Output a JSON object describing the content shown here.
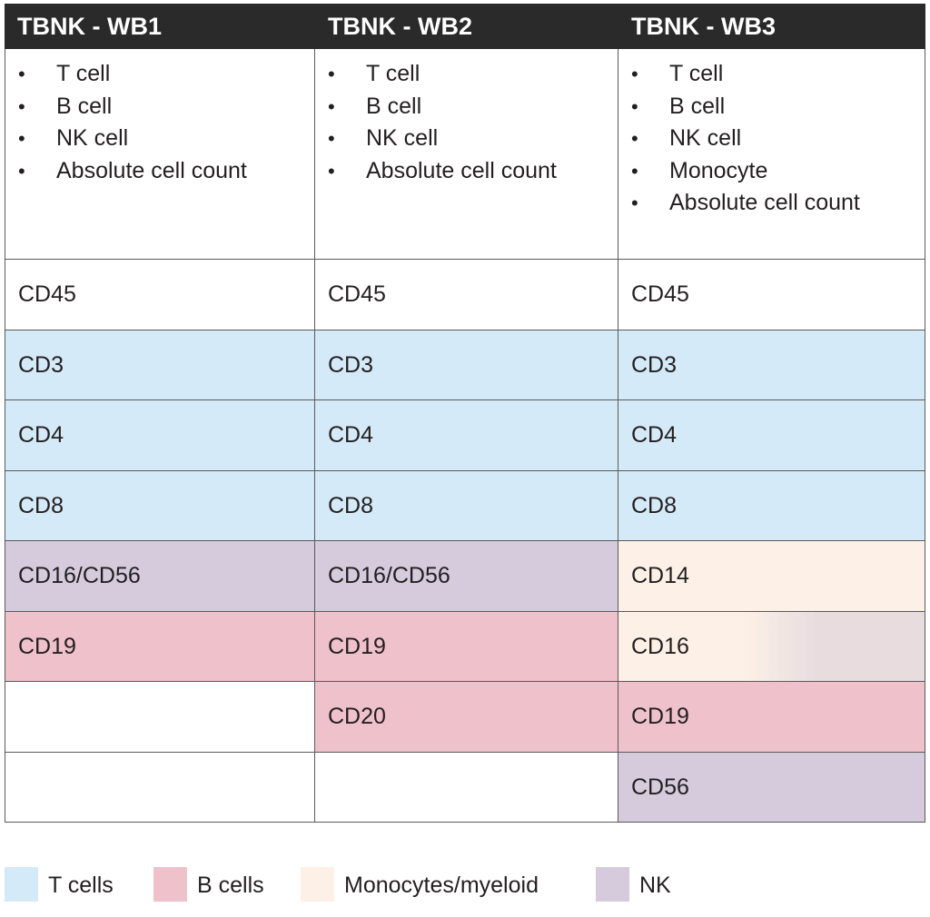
{
  "colors": {
    "header_bg": "#2a2a2a",
    "t_cells": "#d5eaf8",
    "b_cells": "#efc1ca",
    "monocytes_myeloid": "#fdf1e7",
    "nk": "#d5cbdd",
    "empty": "#ffffff"
  },
  "columns": [
    {
      "title": "TBNK - WB1",
      "description": [
        "T cell",
        "B cell",
        "NK cell",
        "Absolute cell count"
      ],
      "markers": [
        {
          "label": "CD45",
          "category": "empty"
        },
        {
          "label": "CD3",
          "category": "t_cells"
        },
        {
          "label": "CD4",
          "category": "t_cells"
        },
        {
          "label": "CD8",
          "category": "t_cells"
        },
        {
          "label": "CD16/CD56",
          "category": "nk"
        },
        {
          "label": "CD19",
          "category": "b_cells"
        },
        {
          "label": "",
          "category": "empty"
        },
        {
          "label": "",
          "category": "empty"
        }
      ]
    },
    {
      "title": "TBNK - WB2",
      "description": [
        "T cell",
        "B cell",
        "NK cell",
        "Absolute cell count"
      ],
      "markers": [
        {
          "label": "CD45",
          "category": "empty"
        },
        {
          "label": "CD3",
          "category": "t_cells"
        },
        {
          "label": "CD4",
          "category": "t_cells"
        },
        {
          "label": "CD8",
          "category": "t_cells"
        },
        {
          "label": "CD16/CD56",
          "category": "nk"
        },
        {
          "label": "CD19",
          "category": "b_cells"
        },
        {
          "label": "CD20",
          "category": "b_cells"
        },
        {
          "label": "",
          "category": "empty"
        }
      ]
    },
    {
      "title": "TBNK - WB3",
      "description": [
        "T cell",
        "B cell",
        "NK cell",
        "Monocyte",
        "Absolute cell count"
      ],
      "markers": [
        {
          "label": "CD45",
          "category": "empty"
        },
        {
          "label": "CD3",
          "category": "t_cells"
        },
        {
          "label": "CD4",
          "category": "t_cells"
        },
        {
          "label": "CD8",
          "category": "t_cells"
        },
        {
          "label": "CD14",
          "category": "monocytes_myeloid"
        },
        {
          "label": "CD16",
          "category": "nk_monocyte_gradient"
        },
        {
          "label": "CD19",
          "category": "b_cells"
        },
        {
          "label": "CD56",
          "category": "nk"
        }
      ]
    }
  ],
  "legend": [
    {
      "label": "T cells",
      "category": "t_cells"
    },
    {
      "label": "B cells",
      "category": "b_cells"
    },
    {
      "label": "Monocytes/myeloid",
      "category": "monocytes_myeloid"
    },
    {
      "label": "NK",
      "category": "nk"
    }
  ],
  "bullet_glyph": "•"
}
